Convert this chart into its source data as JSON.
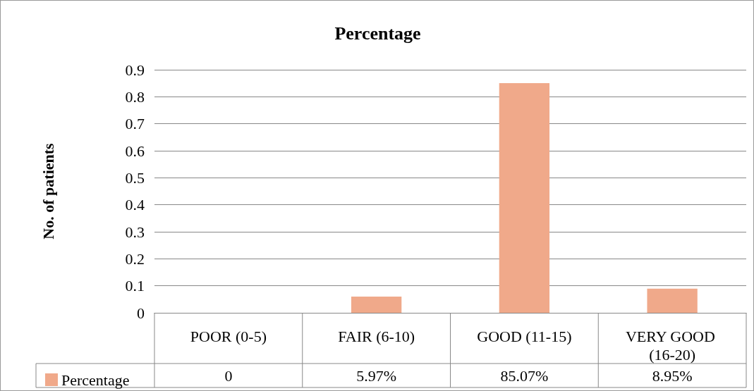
{
  "chart_data": {
    "type": "bar",
    "title": "Percentage",
    "ylabel": "No. of patients",
    "categories": [
      "POOR (0-5)",
      "FAIR (6-10)",
      "GOOD (11-15)",
      "VERY GOOD (16-20)"
    ],
    "series": [
      {
        "name": "Percentage",
        "color": "#f0a98a",
        "values": [
          0,
          0.0597,
          0.8507,
          0.0895
        ],
        "value_labels": [
          "0",
          "5.97%",
          "85.07%",
          "8.95%"
        ]
      }
    ],
    "ylim": [
      0,
      0.9
    ],
    "yticks": [
      0,
      0.1,
      0.2,
      0.3,
      0.4,
      0.5,
      0.6,
      0.7,
      0.8,
      0.9
    ],
    "grid": true,
    "legend": "bottom left"
  }
}
